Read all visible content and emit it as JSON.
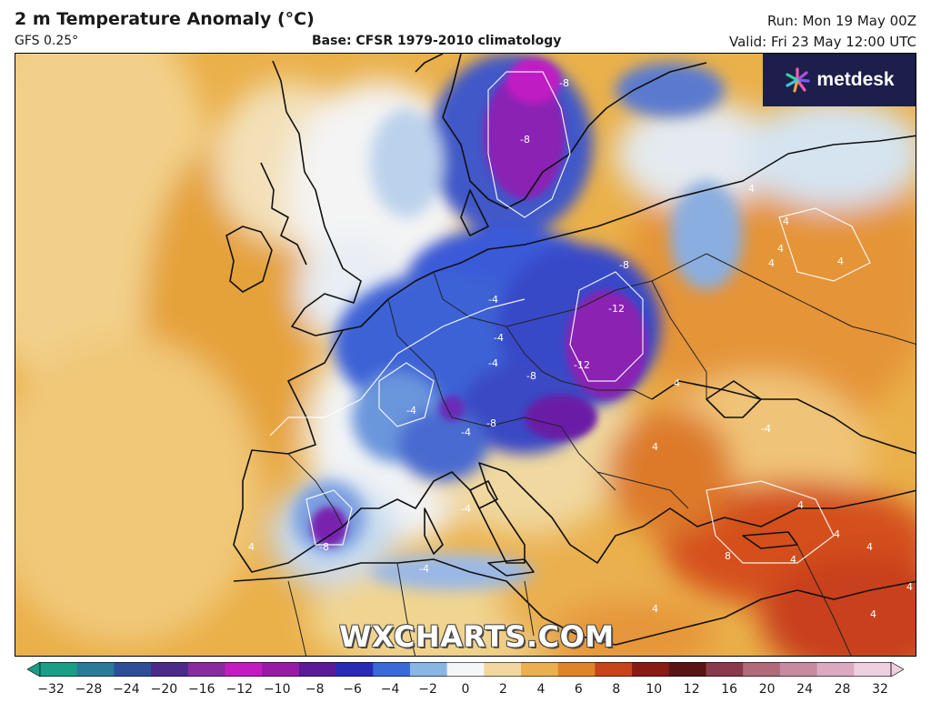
{
  "header": {
    "title": "2 m Temperature Anomaly (°C)",
    "model": "GFS 0.25°",
    "base": "Base: CFSR 1979-2010 climatology",
    "run": "Run: Mon 19 May 00Z",
    "valid": "Valid: Fri 23 May 12:00 UTC"
  },
  "logo": {
    "name": "metdesk",
    "icon": "metdesk-burst-icon"
  },
  "watermark": "WXCHARTS.COM",
  "colorbar": {
    "ticks": [
      "−32",
      "−28",
      "−24",
      "−20",
      "−16",
      "−12",
      "−10",
      "−8",
      "−6",
      "−4",
      "−2",
      "0",
      "2",
      "4",
      "6",
      "8",
      "10",
      "12",
      "16",
      "20",
      "24",
      "28",
      "32"
    ],
    "colors": [
      "#1a9e86",
      "#2a7a9a",
      "#2d4f9a",
      "#4b2a8a",
      "#8a2aa0",
      "#c21cc0",
      "#9a1aa8",
      "#5a1a9a",
      "#2a2ab8",
      "#3a6ad8",
      "#8ab6e4",
      "#f4f6f8",
      "#f2d8a0",
      "#eab050",
      "#e0842a",
      "#c8441a",
      "#8a1a14",
      "#5a1414",
      "#8a3a4a",
      "#b06a7a",
      "#c88aa0",
      "#dcaac0",
      "#eed0de"
    ]
  },
  "map": {
    "contour_labels": [
      "-8",
      "-8",
      "-4",
      "4",
      "4",
      "4",
      "4",
      "4",
      "-8",
      "-12",
      "-12",
      "-4",
      "-4",
      "-4",
      "-4",
      "-8",
      "-8",
      "-4",
      "4",
      "-4",
      "-8",
      "4",
      "4",
      "-4",
      "4",
      "4",
      "8",
      "4",
      "4",
      "4",
      "4",
      "4"
    ]
  }
}
